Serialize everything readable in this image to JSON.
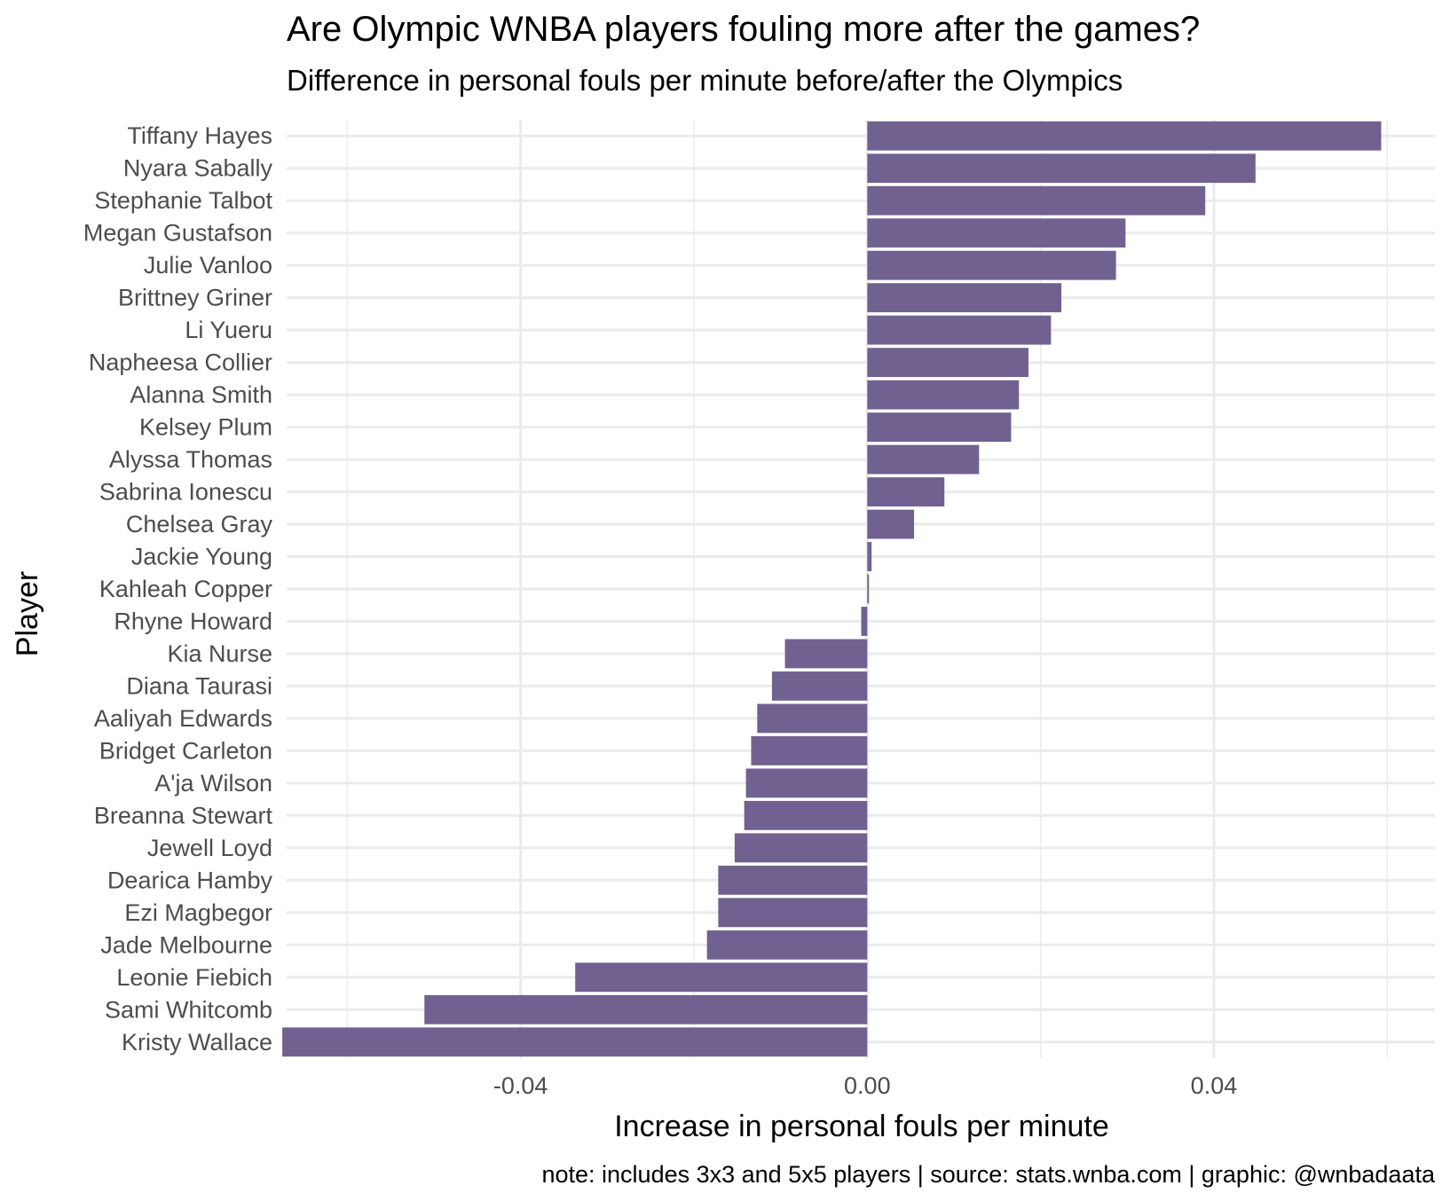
{
  "chart_data": {
    "type": "bar",
    "orientation": "horizontal",
    "title": "Are Olympic WNBA players fouling more after the games?",
    "subtitle": "Difference in personal fouls per minute before/after the Olympics",
    "xlabel": "Increase in personal fouls per minute",
    "ylabel": "Player",
    "caption": "note: includes 3x3 and 5x5 players | source: stats.wnba.com | graphic: @wnbadaata",
    "xlim": [
      -0.067,
      0.0655
    ],
    "x_ticks": [
      {
        "value": -0.04,
        "label": "-0.04"
      },
      {
        "value": 0.0,
        "label": "0.00"
      },
      {
        "value": 0.04,
        "label": "0.04"
      }
    ],
    "grid": true,
    "bar_color": "#716190",
    "categories": [
      "Tiffany Hayes",
      "Nyara Sabally",
      "Stephanie Talbot",
      "Megan Gustafson",
      "Julie Vanloo",
      "Brittney Griner",
      "Li Yueru",
      "Napheesa Collier",
      "Alanna Smith",
      "Kelsey Plum",
      "Alyssa Thomas",
      "Sabrina Ionescu",
      "Chelsea Gray",
      "Jackie Young",
      "Kahleah Copper",
      "Rhyne Howard",
      "Kia Nurse",
      "Diana Taurasi",
      "Aaliyah Edwards",
      "Bridget Carleton",
      "A'ja Wilson",
      "Breanna Stewart",
      "Jewell Loyd",
      "Dearica Hamby",
      "Ezi Magbegor",
      "Jade Melbourne",
      "Leonie Fiebich",
      "Sami Whitcomb",
      "Kristy Wallace"
    ],
    "values": [
      0.0593,
      0.0448,
      0.039,
      0.0298,
      0.0287,
      0.0224,
      0.0212,
      0.0186,
      0.0175,
      0.0166,
      0.0129,
      0.0089,
      0.0054,
      0.0005,
      0.0002,
      -0.0007,
      -0.0095,
      -0.011,
      -0.0127,
      -0.0134,
      -0.014,
      -0.0142,
      -0.0153,
      -0.0172,
      -0.0172,
      -0.0185,
      -0.0337,
      -0.0511,
      -0.0675
    ]
  }
}
